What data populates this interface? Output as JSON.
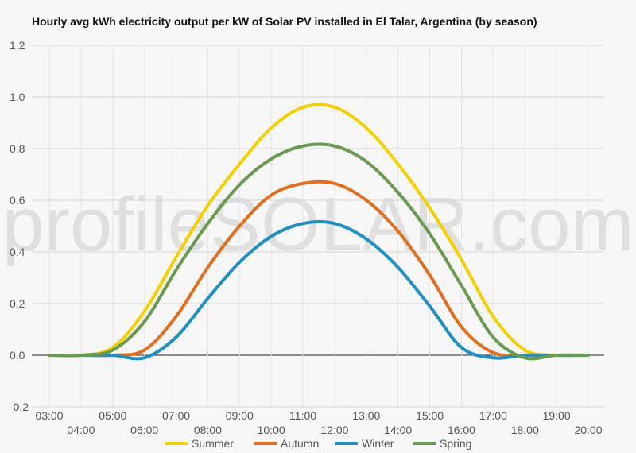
{
  "chart_data": {
    "type": "line",
    "title": "Hourly avg kWh electricity output per kW of Solar PV installed in El Talar, Argentina (by season)",
    "watermark": "profileSOLAR.com",
    "xlabel": "",
    "ylabel": "",
    "ylim": [
      -0.2,
      1.2
    ],
    "yticks": [
      "1.2",
      "1.0",
      "0.8",
      "0.6",
      "0.4",
      "0.2",
      "0.0",
      "-0.2"
    ],
    "ytick_values": [
      1.2,
      1.0,
      0.8,
      0.6,
      0.4,
      0.2,
      0.0,
      -0.2
    ],
    "xticks_upper": [
      "03:00",
      "05:00",
      "07:00",
      "09:00",
      "11:00",
      "13:00",
      "15:00",
      "17:00",
      "19:00"
    ],
    "xticks_lower": [
      "04:00",
      "06:00",
      "08:00",
      "10:00",
      "12:00",
      "14:00",
      "16:00",
      "18:00",
      "20:00"
    ],
    "x": [
      "03:00",
      "04:00",
      "05:00",
      "06:00",
      "07:00",
      "08:00",
      "09:00",
      "10:00",
      "11:00",
      "12:00",
      "13:00",
      "14:00",
      "15:00",
      "16:00",
      "17:00",
      "18:00",
      "19:00",
      "20:00"
    ],
    "grid": true,
    "legend_position": "bottom",
    "series": [
      {
        "name": "Summer",
        "color": "#f5d000",
        "values": [
          0.0,
          0.0,
          0.03,
          0.17,
          0.38,
          0.58,
          0.74,
          0.88,
          0.96,
          0.96,
          0.88,
          0.74,
          0.57,
          0.37,
          0.15,
          0.02,
          0.0,
          0.0
        ]
      },
      {
        "name": "Autumn",
        "color": "#e07020",
        "values": [
          0.0,
          0.0,
          0.0,
          0.02,
          0.15,
          0.34,
          0.5,
          0.62,
          0.665,
          0.665,
          0.6,
          0.48,
          0.31,
          0.11,
          0.01,
          0.0,
          0.0,
          0.0
        ]
      },
      {
        "name": "Winter",
        "color": "#2090c0",
        "values": [
          0.0,
          0.0,
          0.0,
          -0.01,
          0.07,
          0.22,
          0.36,
          0.46,
          0.51,
          0.51,
          0.45,
          0.34,
          0.19,
          0.03,
          -0.01,
          0.0,
          0.0,
          0.0
        ]
      },
      {
        "name": "Spring",
        "color": "#6a9a50",
        "values": [
          0.0,
          0.0,
          0.02,
          0.13,
          0.33,
          0.51,
          0.66,
          0.76,
          0.81,
          0.81,
          0.75,
          0.63,
          0.47,
          0.27,
          0.07,
          -0.01,
          0.0,
          0.0
        ]
      }
    ]
  }
}
